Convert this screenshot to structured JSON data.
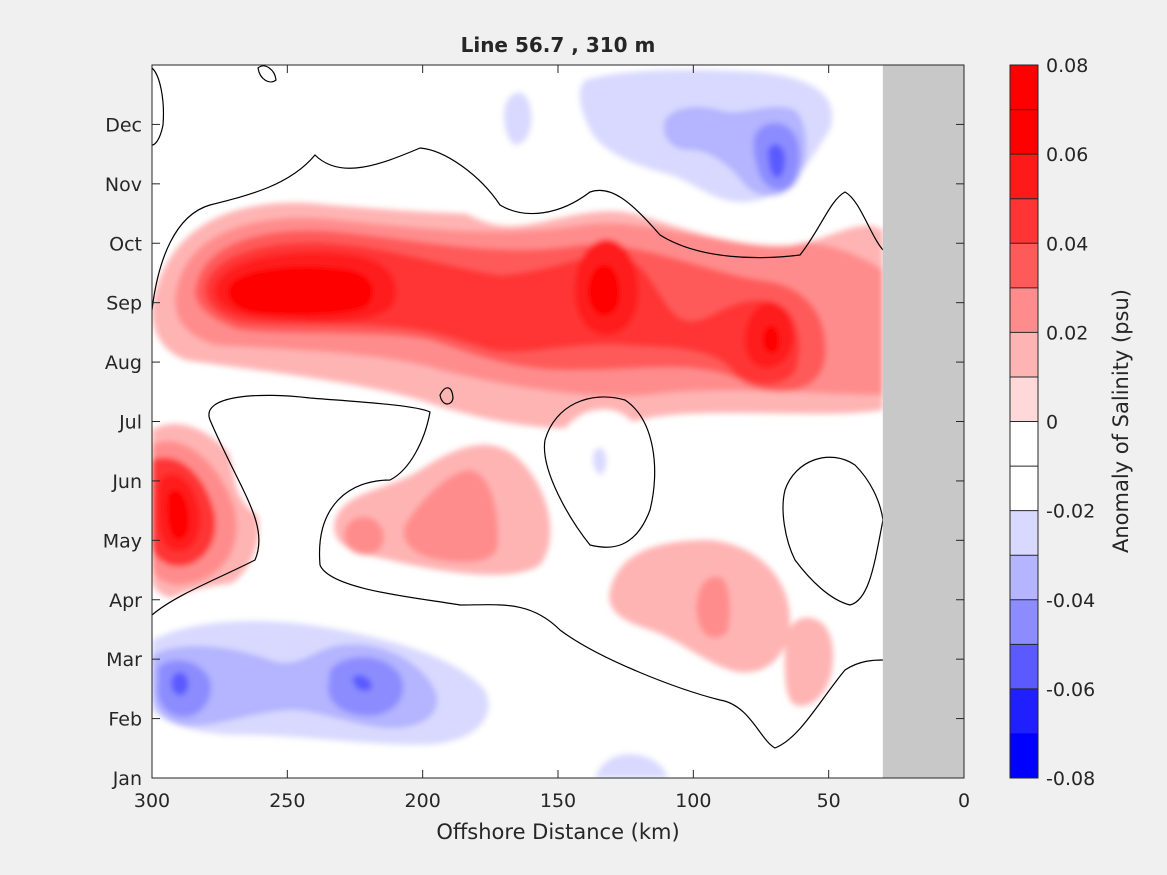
{
  "chart_data": {
    "type": "heatmap",
    "subtype": "filled-contour",
    "title": "Line 56.7 , 310 m",
    "xlabel": "Offshore Distance (km)",
    "ylabel": "",
    "xlim": [
      0,
      300
    ],
    "x_direction": "reversed",
    "x_ticks": [
      "300",
      "250",
      "200",
      "150",
      "100",
      "50",
      "0"
    ],
    "y_ticks": [
      "Jan",
      "Feb",
      "Mar",
      "Apr",
      "May",
      "Jun",
      "Jul",
      "Aug",
      "Sep",
      "Oct",
      "Nov",
      "Dec"
    ],
    "no_data_region_x_km": [
      0,
      30
    ],
    "no_data_color": "#c8c8c8",
    "colorbar": {
      "label": "Anomaly of Salinity (psu)",
      "range": [
        -0.08,
        0.08
      ],
      "step": 0.01,
      "tick_labels": [
        "0.08",
        "0.06",
        "0.04",
        "0.02",
        "0",
        "-0.02",
        "-0.04",
        "-0.06",
        "-0.08"
      ],
      "colors_low_to_high": [
        "#0000ff",
        "#2020ff",
        "#5a5aff",
        "#8c8cff",
        "#b4b4ff",
        "#d9d9ff",
        "#ffffff",
        "#ffffff",
        "#ffd9d9",
        "#ffb4b4",
        "#ff8c8c",
        "#ff5a5a",
        "#ff3434",
        "#ff1a1a",
        "#ff0000",
        "#ff0000"
      ]
    },
    "features": [
      {
        "x_km": 255,
        "month": "Sep",
        "value": 0.06
      },
      {
        "x_km": 135,
        "month": "Sep",
        "value": 0.06
      },
      {
        "x_km": 70,
        "month": "Aug",
        "value": 0.05
      },
      {
        "x_km": 290,
        "month": "May",
        "value": 0.06
      },
      {
        "x_km": 65,
        "month": "Nov",
        "value": -0.06
      },
      {
        "x_km": 290,
        "month": "Mar",
        "value": -0.06
      },
      {
        "x_km": 222,
        "month": "Mar",
        "value": -0.06
      },
      {
        "x_km": 135,
        "month": "Jun",
        "value": -0.03
      },
      {
        "x_km": 97,
        "month": "Apr",
        "value": 0.02
      },
      {
        "x_km": 175,
        "month": "May",
        "value": 0.02
      }
    ]
  }
}
